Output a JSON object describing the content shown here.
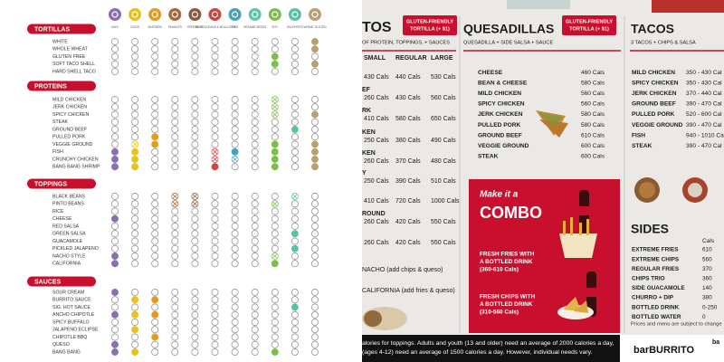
{
  "allergen_chart": {
    "allergens": [
      {
        "name": "MILK",
        "color": "#8b6fb0"
      },
      {
        "name": "EGGS",
        "color": "#e6c21a"
      },
      {
        "name": "MUSTARD",
        "color": "#e59a1e"
      },
      {
        "name": "PEANUTS",
        "color": "#a66a3a"
      },
      {
        "name": "TREE NUTS",
        "color": "#8a5a3a"
      },
      {
        "name": "CRUSTACEANS & MOLLUSCS",
        "color": "#d2453f"
      },
      {
        "name": "FISH",
        "color": "#4aa3b5"
      },
      {
        "name": "SESAME SEEDS",
        "color": "#5fc4b0"
      },
      {
        "name": "SOY",
        "color": "#7bbf4a"
      },
      {
        "name": "SULPHITES",
        "color": "#5bc0a8"
      },
      {
        "name": "WHEAT GLUTEN",
        "color": "#b8a070"
      }
    ],
    "sections": [
      {
        "title": "TORTILLAS",
        "items": [
          {
            "name": "WHITE",
            "states": [
              0,
              0,
              0,
              0,
              0,
              0,
              0,
              0,
              0,
              0,
              1
            ]
          },
          {
            "name": "WHOLE WHEAT",
            "states": [
              0,
              0,
              0,
              0,
              0,
              0,
              0,
              0,
              0,
              0,
              1
            ]
          },
          {
            "name": "GLUTEN FREE",
            "states": [
              0,
              0,
              0,
              0,
              0,
              0,
              0,
              0,
              1,
              0,
              0
            ]
          },
          {
            "name": "SOFT TACO SHELL",
            "states": [
              0,
              0,
              0,
              0,
              0,
              0,
              0,
              0,
              1,
              0,
              1
            ]
          },
          {
            "name": "HARD SHELL TACO",
            "states": [
              0,
              0,
              0,
              0,
              0,
              0,
              0,
              0,
              0,
              0,
              0
            ]
          }
        ]
      },
      {
        "title": "PROTEINS",
        "items": [
          {
            "name": "MILD CHICKEN",
            "states": [
              0,
              0,
              0,
              0,
              0,
              0,
              0,
              0,
              2,
              0,
              0
            ]
          },
          {
            "name": "JERK CHICKEN",
            "states": [
              0,
              0,
              0,
              0,
              0,
              0,
              0,
              0,
              2,
              0,
              0
            ]
          },
          {
            "name": "SPICY CHICKEN",
            "states": [
              0,
              0,
              0,
              0,
              0,
              0,
              0,
              0,
              2,
              0,
              1
            ]
          },
          {
            "name": "STEAK",
            "states": [
              0,
              0,
              0,
              0,
              0,
              0,
              0,
              0,
              0,
              0,
              0
            ]
          },
          {
            "name": "GROUND BEEF",
            "states": [
              0,
              0,
              0,
              0,
              0,
              0,
              0,
              0,
              0,
              1,
              0
            ]
          },
          {
            "name": "PULLED PORK",
            "states": [
              0,
              0,
              1,
              0,
              0,
              0,
              0,
              0,
              0,
              0,
              0
            ]
          },
          {
            "name": "VEGGIE GROUND",
            "states": [
              0,
              2,
              1,
              0,
              0,
              0,
              0,
              0,
              1,
              0,
              1
            ]
          },
          {
            "name": "FISH",
            "states": [
              1,
              1,
              0,
              0,
              0,
              2,
              1,
              0,
              1,
              0,
              1
            ]
          },
          {
            "name": "CRUNCHY CHICKEN",
            "states": [
              1,
              1,
              0,
              0,
              0,
              2,
              2,
              0,
              1,
              0,
              1
            ]
          },
          {
            "name": "BANG BANG SHRIMP",
            "states": [
              1,
              1,
              0,
              0,
              0,
              1,
              0,
              0,
              1,
              0,
              1
            ]
          }
        ]
      },
      {
        "title": "TOPPINGS",
        "items": [
          {
            "name": "BLACK BEANS",
            "states": [
              0,
              0,
              0,
              2,
              2,
              0,
              0,
              0,
              0,
              2,
              0
            ]
          },
          {
            "name": "PINTO BEANS",
            "states": [
              0,
              0,
              0,
              2,
              2,
              0,
              0,
              0,
              2,
              0,
              0
            ]
          },
          {
            "name": "RICE",
            "states": [
              0,
              0,
              0,
              0,
              0,
              0,
              0,
              0,
              0,
              0,
              0
            ]
          },
          {
            "name": "CHEESE",
            "states": [
              1,
              0,
              0,
              0,
              0,
              0,
              0,
              0,
              0,
              0,
              0
            ]
          },
          {
            "name": "RED SALSA",
            "states": [
              0,
              0,
              0,
              0,
              0,
              0,
              0,
              0,
              0,
              0,
              0
            ]
          },
          {
            "name": "GREEN SALSA",
            "states": [
              0,
              0,
              0,
              0,
              0,
              0,
              0,
              0,
              0,
              1,
              0
            ]
          },
          {
            "name": "GUACAMOLE",
            "states": [
              0,
              0,
              0,
              0,
              0,
              0,
              0,
              0,
              0,
              0,
              0
            ]
          },
          {
            "name": "PICKLED JALAPENO",
            "states": [
              0,
              0,
              0,
              0,
              0,
              0,
              0,
              0,
              0,
              1,
              0
            ]
          },
          {
            "name": "NACHO STYLE",
            "states": [
              1,
              0,
              0,
              0,
              0,
              0,
              0,
              0,
              2,
              0,
              0
            ]
          },
          {
            "name": "CALIFORNIA",
            "states": [
              1,
              0,
              0,
              0,
              0,
              0,
              0,
              0,
              1,
              0,
              0
            ]
          }
        ]
      },
      {
        "title": "SAUCES",
        "items": [
          {
            "name": "SOUR CREAM",
            "states": [
              1,
              0,
              0,
              0,
              0,
              0,
              0,
              0,
              0,
              0,
              0
            ]
          },
          {
            "name": "BURRITO SAUCE",
            "states": [
              0,
              1,
              1,
              0,
              0,
              0,
              0,
              0,
              0,
              0,
              0
            ]
          },
          {
            "name": "SIG. HOT SAUCE",
            "states": [
              0,
              0,
              0,
              0,
              0,
              0,
              0,
              0,
              0,
              1,
              0
            ]
          },
          {
            "name": "ANCHO CHIPOTLE",
            "states": [
              1,
              1,
              1,
              0,
              0,
              0,
              0,
              0,
              0,
              0,
              0
            ]
          },
          {
            "name": "SPICY BUFFALO",
            "states": [
              0,
              0,
              0,
              0,
              0,
              0,
              0,
              0,
              0,
              0,
              0
            ]
          },
          {
            "name": "JALAPENO ECLIPSE",
            "states": [
              0,
              1,
              0,
              0,
              0,
              0,
              0,
              0,
              0,
              0,
              0
            ]
          },
          {
            "name": "CHIPOTLE BBQ",
            "states": [
              0,
              0,
              1,
              0,
              0,
              0,
              0,
              0,
              0,
              0,
              0
            ]
          },
          {
            "name": "QUESO",
            "states": [
              1,
              0,
              0,
              0,
              0,
              0,
              0,
              0,
              0,
              0,
              0
            ]
          },
          {
            "name": "BANG BANG",
            "states": [
              1,
              1,
              0,
              0,
              0,
              0,
              0,
              0,
              1,
              0,
              0
            ]
          }
        ]
      }
    ]
  },
  "menu": {
    "burritos": {
      "title": "TOS",
      "badge": [
        "GLUTEN-FRIENDLY",
        "TORTILLA (+ $1)"
      ],
      "subtitle": "OF PROTEIN, TOPPINGS, + SAUCES",
      "headers": [
        "SMALL",
        "REGULAR",
        "LARGE"
      ],
      "rows": [
        {
          "cals": [
            "430 Cals",
            "440 Cals",
            "530 Cals"
          ]
        },
        {
          "name": "EF",
          "cals": [
            "260 Cals",
            "430 Cals",
            "560 Cals"
          ]
        },
        {
          "name": "RK",
          "cals": [
            "410 Cals",
            "580 Cals",
            "650 Cals"
          ]
        },
        {
          "name": "KEN",
          "cals": [
            "250 Cals",
            "380 Cals",
            "490 Cals"
          ]
        },
        {
          "name": "KEN",
          "cals": [
            "260 Cals",
            "370 Cals",
            "480 Cals"
          ]
        },
        {
          "name": "Y",
          "cals": [
            "250 Cals",
            "390 Cals",
            "510 Cals"
          ]
        },
        {
          "cals": [
            "410 Cals",
            "720 Cals",
            "1000 Cals"
          ]
        },
        {
          "name": "ROUND",
          "cals": [
            "260 Cals",
            "420 Cals",
            "550 Cals"
          ]
        },
        {
          "cals": [
            "260 Cals",
            "420 Cals",
            "550 Cals"
          ]
        }
      ],
      "extras": [
        "NACHO (add chips & queso)",
        "CALIFORNIA (add fries & queso)"
      ]
    },
    "quesadillas": {
      "title": "QUESADILLAS",
      "badge": [
        "GLUTEN-FRIENDLY",
        "TORTILLA (+ $1)"
      ],
      "subtitle": "QUESADILLA + SIDE SALSA + SAUCE",
      "items": [
        {
          "name": "CHEESE",
          "cals": "460 Cals"
        },
        {
          "name": "BEAN & CHEESE",
          "cals": "580 Cals"
        },
        {
          "name": "MILD CHICKEN",
          "cals": "560 Cals"
        },
        {
          "name": "SPICY CHICKEN",
          "cals": "560 Cals"
        },
        {
          "name": "JERK CHICKEN",
          "cals": "580 Cals"
        },
        {
          "name": "PULLED PORK",
          "cals": "580 Cals"
        },
        {
          "name": "GROUND BEEF",
          "cals": "610 Cals"
        },
        {
          "name": "VEGGIE GROUND",
          "cals": "600 Cals"
        },
        {
          "name": "STEAK",
          "cals": "600 Cals"
        }
      ]
    },
    "combo": {
      "lead": "Make it a",
      "title": "COMBO",
      "options": [
        [
          "FRESH FRIES WITH",
          "A BOTTLED DRINK",
          "(360-610 Cals)"
        ],
        [
          "FRESH CHIPS WITH",
          "A BOTTLED DRINK",
          "(310-560 Cals)"
        ]
      ]
    },
    "tacos": {
      "title": "TACOS",
      "subtitle": "3 TACOS + CHIPS & SALSA",
      "items": [
        {
          "name": "MILD CHICKEN",
          "cals": "350 - 430 Cal"
        },
        {
          "name": "SPICY CHICKEN",
          "cals": "350 - 430 Cal"
        },
        {
          "name": "JERK CHICKEN",
          "cals": "370 - 440 Cal"
        },
        {
          "name": "GROUND BEEF",
          "cals": "390 - 470 Cal"
        },
        {
          "name": "PULLED PORK",
          "cals": "520 - 600 Cal"
        },
        {
          "name": "VEGGIE GROUND",
          "cals": "390 - 470 Cal"
        },
        {
          "name": "FISH",
          "cals": "940 - 1010 Ca"
        },
        {
          "name": "STEAK",
          "cals": "390 - 470 Cal"
        }
      ]
    },
    "sides": {
      "title": "SIDES",
      "unit": "Cals",
      "items": [
        {
          "name": "EXTREME FRIES",
          "cals": "610"
        },
        {
          "name": "EXTREME CHIPS",
          "cals": "560"
        },
        {
          "name": "REGULAR FRIES",
          "cals": "370"
        },
        {
          "name": "CHIPS TRIO",
          "cals": "360"
        },
        {
          "name": "SIDE GUACAMOLE",
          "cals": "140"
        },
        {
          "name": "CHURRO + DIP",
          "cals": "380"
        },
        {
          "name": "BOTTLED DRINK",
          "cals": "0-250"
        },
        {
          "name": "BOTTLED WATER",
          "cals": "0"
        }
      ],
      "note": "Prices and menu are subject to change"
    },
    "footer": {
      "lines": [
        "alories for toppings. Adults and youth (13 and older) need an average of 2000 calories a day,",
        "(ages 4-12) need an average of 1500 calories a day. However, individual needs vary."
      ],
      "brand": "barBURRITO",
      "brand_cut": "ba"
    }
  }
}
